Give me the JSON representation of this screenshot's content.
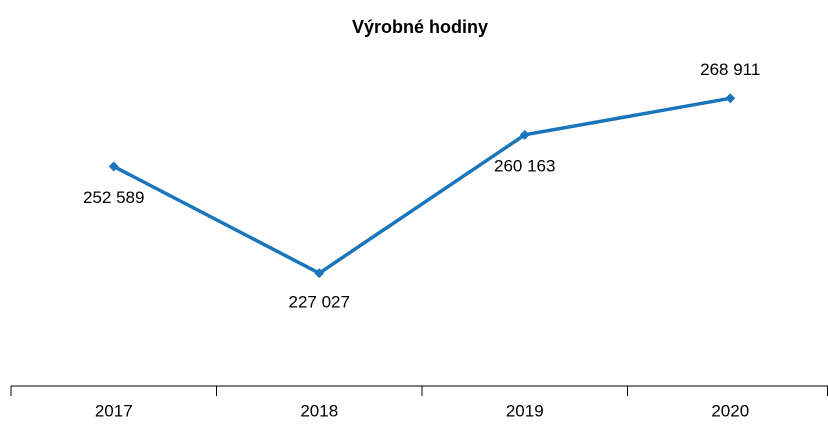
{
  "chart_data": {
    "type": "line",
    "title": "Výrobné hodiny",
    "categories": [
      "2017",
      "2018",
      "2019",
      "2020"
    ],
    "series": [
      {
        "name": null,
        "color": "#1b75bb",
        "values": [
          252589,
          227027,
          260163,
          268911
        ],
        "value_labels": [
          "252 589",
          "227 027",
          "260 163",
          "268 911"
        ]
      }
    ],
    "ylim": [
      200000,
      280000
    ]
  }
}
